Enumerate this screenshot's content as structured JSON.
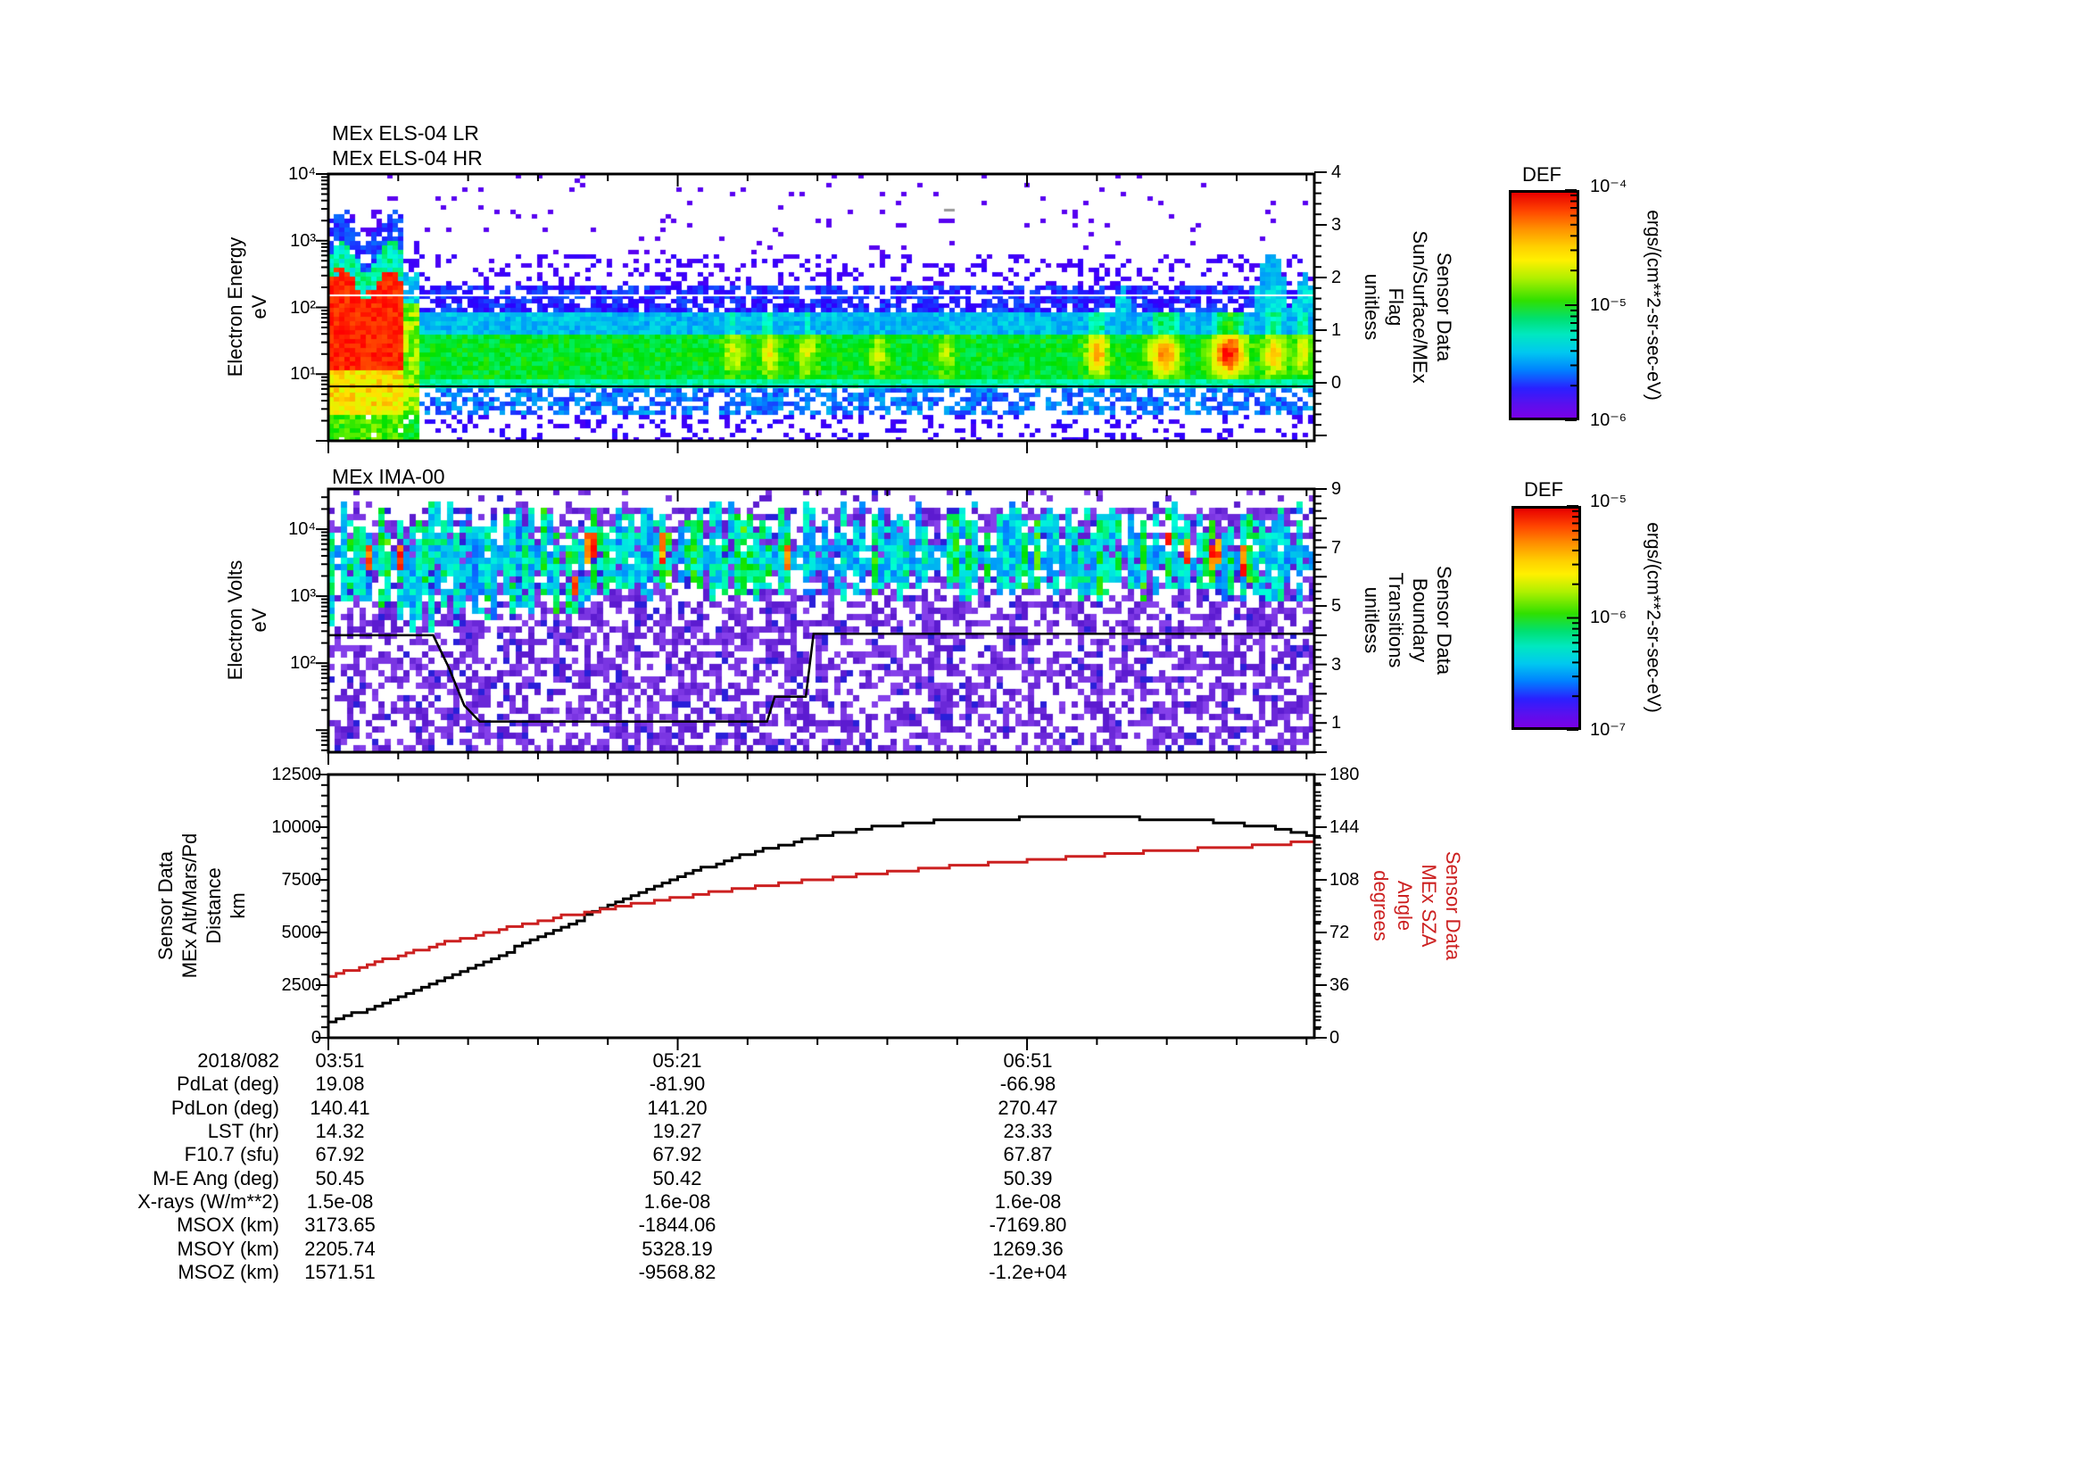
{
  "figure": {
    "els": {
      "title_lr": "MEx ELS-04 LR",
      "title_hr": "MEx ELS-04 HR",
      "ylabel": "Electron Energy\neV",
      "right_label": "Sensor Data\nSun/Surface/MEx\nFlag\nunitless",
      "ytick_labels": [
        "10⁴",
        "10³",
        "10²",
        "10¹"
      ],
      "flag_tick_labels": [
        "4",
        "3",
        "2",
        "1",
        "0"
      ]
    },
    "ima": {
      "title": "MEx IMA-00",
      "ylabel": "Electron Volts\neV",
      "right_label": "Sensor Data\nBoundary\nTransitions\nunitless",
      "ytick_labels": [
        "10⁴",
        "10³",
        "10²"
      ],
      "bt_tick_labels": [
        "9",
        "7",
        "5",
        "3",
        "1"
      ]
    },
    "lines": {
      "ylabel": "Sensor Data\nMEx Alt/Mars/Pd\nDistance\nkm",
      "right_label": "Sensor Data\nMEx SZA\nAngle\ndegrees",
      "alt_tick_labels": [
        "12500",
        "10000",
        "7500",
        "5000",
        "2500",
        "0"
      ],
      "sza_tick_labels": [
        "180",
        "144",
        "108",
        "72",
        "36",
        "0"
      ],
      "sza_color": "#cc2020"
    },
    "colorbars": [
      {
        "title": "DEF",
        "tick_labels": [
          "10⁻⁴",
          "10⁻⁵",
          "10⁻⁶"
        ],
        "unit": "ergs/(cm**2-sr-sec-eV)"
      },
      {
        "title": "DEF",
        "tick_labels": [
          "10⁻⁵",
          "10⁻⁶",
          "10⁻⁷"
        ],
        "unit": "ergs/(cm**2-sr-sec-eV)"
      }
    ]
  },
  "table": {
    "date": "2018/082",
    "row_labels": [
      "PdLat (deg)",
      "PdLon (deg)",
      "LST (hr)",
      "F10.7 (sfu)",
      "M-E Ang (deg)",
      "X-rays (W/m**2)",
      "MSOX (km)",
      "MSOY (km)",
      "MSOZ (km)"
    ],
    "columns": [
      {
        "time": "03:51",
        "values": [
          "19.08",
          "140.41",
          "14.32",
          "67.92",
          "50.45",
          "1.5e-08",
          "3173.65",
          "2205.74",
          "1571.51"
        ]
      },
      {
        "time": "05:21",
        "values": [
          "-81.90",
          "141.20",
          "19.27",
          "67.92",
          "50.42",
          "1.6e-08",
          "-1844.06",
          "5328.19",
          "-9568.82"
        ]
      },
      {
        "time": "06:51",
        "values": [
          "-66.98",
          "270.47",
          "23.33",
          "67.87",
          "50.39",
          "1.6e-08",
          "-7169.80",
          "1269.36",
          "-1.2e+04"
        ]
      }
    ]
  },
  "chart_data": [
    {
      "type": "heatmap",
      "title": "MEx ELS-04 LR / MEx ELS-04 HR",
      "x_axis": {
        "date": "2018/082",
        "start": "03:51",
        "end": "08:05",
        "span_min": 254,
        "major_tick_labels": [
          "03:51",
          "05:21",
          "06:51"
        ],
        "major_tick_every_min": 90,
        "minor_tick_every_min": 18
      },
      "y_axis": {
        "label": "Electron Energy (eV)",
        "scale": "log",
        "range_eV": [
          1,
          10000
        ]
      },
      "right_axis": {
        "label": "Sensor Data Sun/Surface/MEx Flag (unitless)",
        "tick_labels": [
          4,
          3,
          2,
          1,
          0
        ]
      },
      "colorbar": {
        "title": "DEF",
        "units": "ergs/(cm**2-sr-sec-eV)",
        "range": [
          1e-06,
          0.0001
        ]
      },
      "overlay_lines": [
        {
          "color": "#ffffff",
          "energy_eV": 150
        },
        {
          "color": "#000000",
          "energy_eV": 6.5
        }
      ],
      "features": {
        "sheath_blob": {
          "t_min": [
            0,
            19
          ],
          "energy_eV": [
            11,
            210
          ],
          "level": "saturated red ~1e-4"
        },
        "low_energy_tail": {
          "t_min": [
            0,
            19
          ],
          "energy_eV": [
            2,
            11
          ],
          "level": "orange-yellow"
        },
        "ionosphere_band": {
          "t_min": [
            19,
            254
          ],
          "energy_eV": [
            6,
            90
          ],
          "level": "green ~3e-6 with yellow-orange bursts"
        },
        "burst_t_min": [
          104,
          114,
          123,
          142,
          159,
          198,
          215,
          232
        ],
        "cyan_plume_t_min": [
          204,
          243,
          251
        ],
        "speckle": "sparse blue/purple counts 100-600 eV and below 5 eV"
      }
    },
    {
      "type": "heatmap",
      "title": "MEx IMA-00",
      "x_axis": {
        "date": "2018/082",
        "start": "03:51",
        "end": "08:05",
        "span_min": 254,
        "major_tick_labels": [
          "03:51",
          "05:21",
          "06:51"
        ],
        "major_tick_every_min": 90,
        "minor_tick_every_min": 18
      },
      "y_axis": {
        "label": "Electron Volts (eV)",
        "scale": "log",
        "range_eV": [
          4.7,
          39800
        ]
      },
      "right_axis": {
        "label": "Sensor Data Boundary Transitions (unitless)",
        "range": [
          0,
          9
        ],
        "tick_labels": [
          9,
          7,
          5,
          3,
          1
        ]
      },
      "colorbar": {
        "title": "DEF",
        "units": "ergs/(cm**2-sr-sec-eV)",
        "range": [
          1e-07,
          1e-05
        ]
      },
      "boundary_line": {
        "color": "#000000",
        "points_t_min_level": [
          [
            0,
            4.0
          ],
          [
            27,
            4.0
          ],
          [
            31,
            2.9
          ],
          [
            35,
            1.6
          ],
          [
            39,
            1.05
          ],
          [
            113,
            1.05
          ],
          [
            115,
            1.9
          ],
          [
            123,
            1.9
          ],
          [
            125,
            4.05
          ],
          [
            254,
            4.05
          ]
        ]
      },
      "features": {
        "ion_band": {
          "energy_eV": [
            1400,
            11000
          ],
          "pattern": "vertical cyan/green stripes, sporadic red cores, denser before ~04:58"
        },
        "background": "~50% density purple/blue speckle noise on white"
      }
    },
    {
      "type": "line",
      "x_axis": {
        "date": "2018/082",
        "start": "03:51",
        "end": "08:05",
        "span_min": 254,
        "major_tick_labels": [
          "03:51",
          "05:21",
          "06:51"
        ],
        "major_tick_every_min": 90,
        "minor_tick_every_min": 18
      },
      "left_axis": {
        "label": "Sensor Data MEx Alt/Mars/Pd Distance (km)",
        "range": [
          0,
          12500
        ],
        "tick_step": 2500
      },
      "right_axis": {
        "label": "Sensor Data MEx SZA Angle (degrees)",
        "range": [
          0,
          180
        ],
        "tick_step": 36,
        "color": "#cc2020"
      },
      "series": [
        {
          "name": "MEx Alt/Mars/Pd Distance",
          "axis": "left",
          "color": "#000000",
          "units": "km",
          "points": [
            [
              0,
              800
            ],
            [
              10,
              1350
            ],
            [
              20,
              2050
            ],
            [
              30,
              2800
            ],
            [
              40,
              3600
            ],
            [
              50,
              4450
            ],
            [
              60,
              5300
            ],
            [
              70,
              6100
            ],
            [
              80,
              6900
            ],
            [
              90,
              7650
            ],
            [
              100,
              8300
            ],
            [
              110,
              8850
            ],
            [
              120,
              9300
            ],
            [
              130,
              9700
            ],
            [
              140,
              10000
            ],
            [
              150,
              10200
            ],
            [
              160,
              10330
            ],
            [
              170,
              10400
            ],
            [
              180,
              10440
            ],
            [
              195,
              10450
            ],
            [
              210,
              10420
            ],
            [
              220,
              10360
            ],
            [
              230,
              10240
            ],
            [
              240,
              10040
            ],
            [
              248,
              9820
            ],
            [
              254,
              9600
            ]
          ]
        },
        {
          "name": "MEx SZA Angle",
          "axis": "right",
          "color": "#cc2020",
          "units": "degrees",
          "points": [
            [
              0,
              42
            ],
            [
              10,
              50
            ],
            [
              20,
              58
            ],
            [
              30,
              65
            ],
            [
              40,
              71.5
            ],
            [
              50,
              77.5
            ],
            [
              60,
              83
            ],
            [
              70,
              87.5
            ],
            [
              80,
              92
            ],
            [
              90,
              96
            ],
            [
              100,
              100
            ],
            [
              110,
              103.5
            ],
            [
              120,
              106.5
            ],
            [
              130,
              109.5
            ],
            [
              140,
              112
            ],
            [
              150,
              114.5
            ],
            [
              160,
              117
            ],
            [
              170,
              119
            ],
            [
              180,
              121
            ],
            [
              190,
              123
            ],
            [
              200,
              125
            ],
            [
              210,
              127
            ],
            [
              220,
              128.5
            ],
            [
              230,
              130
            ],
            [
              240,
              131.5
            ],
            [
              254,
              134.5
            ]
          ]
        }
      ]
    }
  ]
}
